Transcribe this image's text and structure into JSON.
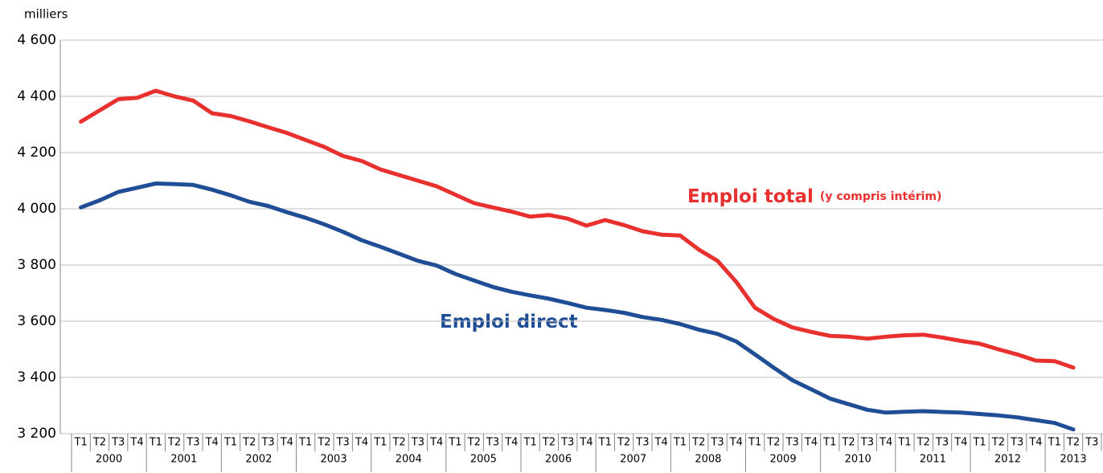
{
  "chart_data": {
    "type": "line",
    "y_label": "milliers",
    "categories": [
      "T1",
      "T2",
      "T3",
      "T4",
      "T1",
      "T2",
      "T3",
      "T4",
      "T1",
      "T2",
      "T3",
      "T4",
      "T1",
      "T2",
      "T3",
      "T4",
      "T1",
      "T2",
      "T3",
      "T4",
      "T1",
      "T2",
      "T3",
      "T4",
      "T1",
      "T2",
      "T3",
      "T4",
      "T1",
      "T2",
      "T3",
      "T4",
      "T1",
      "T2",
      "T3",
      "T4",
      "T1",
      "T2",
      "T3",
      "T4",
      "T1",
      "T2",
      "T3",
      "T4",
      "T1",
      "T2",
      "T3",
      "T4",
      "T1",
      "T2",
      "T3",
      "T4",
      "T1",
      "T2",
      "T3"
    ],
    "years": [
      "2000",
      "2001",
      "2002",
      "2003",
      "2004",
      "2005",
      "2006",
      "2007",
      "2008",
      "2009",
      "2010",
      "2011",
      "2012",
      "2013"
    ],
    "series": [
      {
        "name": "Emploi total",
        "color": "#e8302e",
        "values": [
          4310,
          4350,
          4390,
          4395,
          4420,
          4400,
          4385,
          4340,
          4330,
          4311,
          4290,
          4270,
          4245,
          4220,
          4188,
          4170,
          4140,
          4120,
          4100,
          4080,
          4050,
          4020,
          4005,
          3990,
          3972,
          3978,
          3965,
          3940,
          3960,
          3942,
          3920,
          3908,
          3905,
          3855,
          3815,
          3740,
          3648,
          3608,
          3578,
          3562,
          3548,
          3545,
          3538,
          3545,
          3550,
          3552,
          3542,
          3530,
          3520,
          3500,
          3482,
          3460,
          3458,
          3435,
          null
        ]
      },
      {
        "name": "Emploi direct",
        "color": "#1f4e96",
        "values": [
          4005,
          4030,
          4060,
          4075,
          4090,
          4088,
          4085,
          4068,
          4048,
          4025,
          4010,
          3988,
          3968,
          3945,
          3918,
          3888,
          3865,
          3840,
          3815,
          3798,
          3768,
          3745,
          3722,
          3705,
          3692,
          3680,
          3665,
          3648,
          3640,
          3630,
          3615,
          3605,
          3590,
          3570,
          3555,
          3528,
          3482,
          3435,
          3390,
          3358,
          3325,
          3305,
          3285,
          3275,
          3278,
          3280,
          3277,
          3275,
          3270,
          3265,
          3258,
          3248,
          3238,
          3215,
          null
        ]
      }
    ],
    "annotations": [
      "(y compris intérim)"
    ],
    "ylim": [
      3200,
      4600
    ],
    "yticks": [
      {
        "value": 3200,
        "label": "3 200"
      },
      {
        "value": 3400,
        "label": "3 400"
      },
      {
        "value": 3600,
        "label": "3 600"
      },
      {
        "value": 3800,
        "label": "3 800"
      },
      {
        "value": 4000,
        "label": "4 000"
      },
      {
        "value": 4200,
        "label": "4 200"
      },
      {
        "value": 4400,
        "label": "4 400"
      },
      {
        "value": 4600,
        "label": "4 600"
      }
    ],
    "grid": true
  }
}
